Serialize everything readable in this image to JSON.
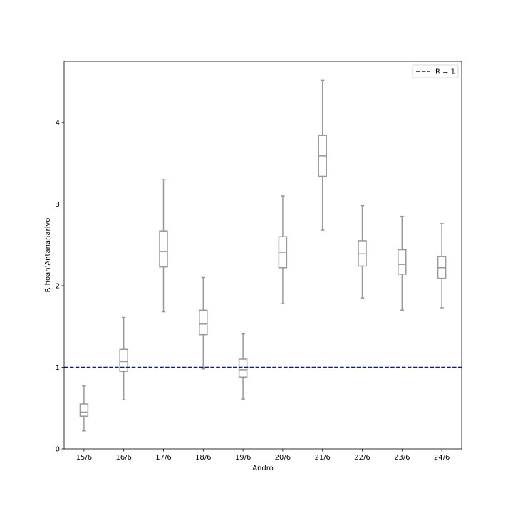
{
  "chart_data": {
    "type": "box",
    "title": "",
    "xlabel": "Andro",
    "ylabel": "R hoan'Antananarivo",
    "ylim": [
      0,
      4.75
    ],
    "yticks": [
      0,
      1,
      2,
      3,
      4
    ],
    "grid": false,
    "legend_position": "top-right",
    "box_color": "#999999",
    "reference_line": {
      "label": "R = 1",
      "value": 1,
      "color": "#0000ff",
      "style": "dashed"
    },
    "categories": [
      "15/6",
      "16/6",
      "17/6",
      "18/6",
      "19/6",
      "20/6",
      "21/6",
      "22/6",
      "23/6",
      "24/6"
    ],
    "boxes": [
      {
        "whisker_low": 0.22,
        "q1": 0.4,
        "median": 0.45,
        "q3": 0.55,
        "whisker_high": 0.77
      },
      {
        "whisker_low": 0.6,
        "q1": 0.95,
        "median": 1.07,
        "q3": 1.22,
        "whisker_high": 1.61
      },
      {
        "whisker_low": 1.68,
        "q1": 2.23,
        "median": 2.42,
        "q3": 2.67,
        "whisker_high": 3.3
      },
      {
        "whisker_low": 0.98,
        "q1": 1.4,
        "median": 1.53,
        "q3": 1.7,
        "whisker_high": 2.1
      },
      {
        "whisker_low": 0.61,
        "q1": 0.88,
        "median": 0.97,
        "q3": 1.1,
        "whisker_high": 1.41
      },
      {
        "whisker_low": 1.78,
        "q1": 2.22,
        "median": 2.41,
        "q3": 2.6,
        "whisker_high": 3.1
      },
      {
        "whisker_low": 2.68,
        "q1": 3.34,
        "median": 3.59,
        "q3": 3.84,
        "whisker_high": 4.52
      },
      {
        "whisker_low": 1.85,
        "q1": 2.24,
        "median": 2.39,
        "q3": 2.55,
        "whisker_high": 2.98
      },
      {
        "whisker_low": 1.7,
        "q1": 2.14,
        "median": 2.26,
        "q3": 2.44,
        "whisker_high": 2.85
      },
      {
        "whisker_low": 1.73,
        "q1": 2.09,
        "median": 2.22,
        "q3": 2.36,
        "whisker_high": 2.76
      }
    ]
  }
}
